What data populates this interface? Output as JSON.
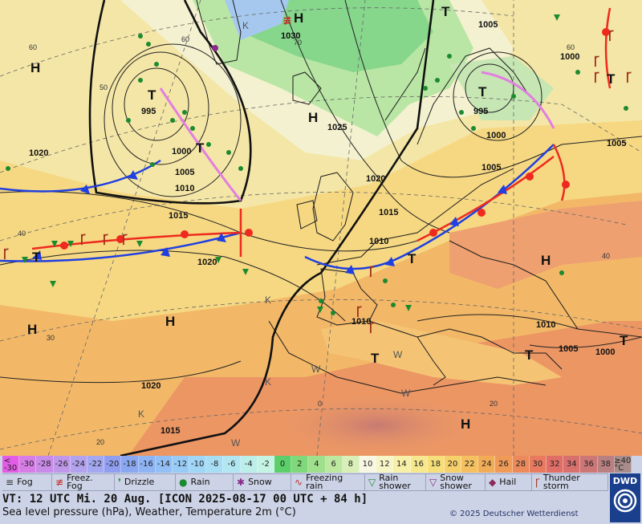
{
  "map": {
    "pressure_centers": [
      {
        "label": "H",
        "kind": "high"
      },
      {
        "label": "H",
        "kind": "high"
      },
      {
        "label": "H",
        "kind": "high"
      },
      {
        "label": "H",
        "kind": "high"
      },
      {
        "label": "H",
        "kind": "high"
      },
      {
        "label": "H",
        "kind": "high"
      },
      {
        "label": "H",
        "kind": "high"
      },
      {
        "label": "T",
        "kind": "low"
      },
      {
        "label": "T",
        "kind": "low"
      },
      {
        "label": "T",
        "kind": "low"
      },
      {
        "label": "T",
        "kind": "low"
      },
      {
        "label": "T",
        "kind": "low"
      },
      {
        "label": "T",
        "kind": "low"
      },
      {
        "label": "T",
        "kind": "low"
      },
      {
        "label": "T",
        "kind": "low"
      },
      {
        "label": "T",
        "kind": "low"
      },
      {
        "label": "T",
        "kind": "low"
      }
    ],
    "isobar_labels": [
      "1030",
      "1005",
      "1000",
      "995",
      "1025",
      "1000",
      "1005",
      "995",
      "1000",
      "1005",
      "1010",
      "1015",
      "1020",
      "1020",
      "1015",
      "1010",
      "1020",
      "1010",
      "1010",
      "1005",
      "1000",
      "1020",
      "1015",
      "1005"
    ],
    "grid_labels": [
      "60",
      "50",
      "40",
      "30",
      "20",
      "60",
      "40",
      "0",
      "20",
      "70",
      "60"
    ],
    "misc_marks": [
      "K",
      "K",
      "K",
      "K",
      "W",
      "W",
      "W",
      "W"
    ]
  },
  "legend": {
    "temperature_scale": [
      {
        "label": "<\n-30",
        "color": "#e35ce6"
      },
      {
        "label": "-30",
        "color": "#d77ee6"
      },
      {
        "label": "-28",
        "color": "#c98be8"
      },
      {
        "label": "-26",
        "color": "#bf98ea"
      },
      {
        "label": "-24",
        "color": "#b3a2ee"
      },
      {
        "label": "-22",
        "color": "#a3a8f0"
      },
      {
        "label": "-20",
        "color": "#8f9ef0"
      },
      {
        "label": "-18",
        "color": "#8aa8f2"
      },
      {
        "label": "-16",
        "color": "#8eb4f4"
      },
      {
        "label": "-14",
        "color": "#92c0f6"
      },
      {
        "label": "-12",
        "color": "#98ccf6"
      },
      {
        "label": "-10",
        "color": "#a0d6f6"
      },
      {
        "label": "-8",
        "color": "#a8def4"
      },
      {
        "label": "-6",
        "color": "#b2e6f0"
      },
      {
        "label": "-4",
        "color": "#bceeea"
      },
      {
        "label": "-2",
        "color": "#c6f4e4"
      },
      {
        "label": "0",
        "color": "#5ccf6a"
      },
      {
        "label": "2",
        "color": "#7fd87a"
      },
      {
        "label": "4",
        "color": "#9fe08c"
      },
      {
        "label": "6",
        "color": "#bde8a0"
      },
      {
        "label": "8",
        "color": "#d8f0b8"
      },
      {
        "label": "10",
        "color": "#f7f7e4"
      },
      {
        "label": "12",
        "color": "#f7f5c6"
      },
      {
        "label": "14",
        "color": "#f7f0a8"
      },
      {
        "label": "16",
        "color": "#f7e88e"
      },
      {
        "label": "18",
        "color": "#f6de7a"
      },
      {
        "label": "20",
        "color": "#f6d06a"
      },
      {
        "label": "22",
        "color": "#f4c060"
      },
      {
        "label": "24",
        "color": "#f2ac58"
      },
      {
        "label": "26",
        "color": "#f09a58"
      },
      {
        "label": "28",
        "color": "#ec8a5c"
      },
      {
        "label": "30",
        "color": "#e87a60"
      },
      {
        "label": "32",
        "color": "#e06e66"
      },
      {
        "label": "34",
        "color": "#d8706e"
      },
      {
        "label": "36",
        "color": "#cc7676"
      },
      {
        "label": "38",
        "color": "#b88080"
      },
      {
        "label": "≥40\n°C",
        "color": "#a88c8c"
      }
    ],
    "weather_symbols": [
      {
        "icon": "fog-icon",
        "label": "Fog",
        "glyph": "≡",
        "color": "#333333"
      },
      {
        "icon": "freezing-fog-icon",
        "label": "Freez.\nFog",
        "glyph": "≢",
        "color": "#c0302a"
      },
      {
        "icon": "drizzle-icon",
        "label": "Drizzle",
        "glyph": "❜",
        "color": "#1c8a2e"
      },
      {
        "icon": "rain-icon",
        "label": "Rain",
        "glyph": "●",
        "color": "#1c8a2e"
      },
      {
        "icon": "snow-icon",
        "label": "Snow",
        "glyph": "✱",
        "color": "#8a2a8a"
      },
      {
        "icon": "freezing-rain-icon",
        "label": "Freezing\nrain",
        "glyph": "∿",
        "color": "#c0302a"
      },
      {
        "icon": "rain-shower-icon",
        "label": "Rain\nshower",
        "glyph": "▽",
        "color": "#1c8a2e"
      },
      {
        "icon": "snow-shower-icon",
        "label": "Snow\nshower",
        "glyph": "▽",
        "color": "#8a2a8a"
      },
      {
        "icon": "hail-icon",
        "label": "Hail",
        "glyph": "◆",
        "color": "#8a2a5a"
      },
      {
        "icon": "thunderstorm-icon",
        "label": "Thunder\nstorm",
        "glyph": "Ꞅ",
        "color": "#a0301e"
      }
    ],
    "valid_time": "VT: 12 UTC Mi.  20 Aug. [ICON 2025-08-17  00 UTC + 84 h]",
    "description": "Sea level pressure (hPa), Weather, Temperature 2m (°C)",
    "copyright": "© 2025 Deutscher Wetterdienst",
    "logo_text": "DWD"
  }
}
